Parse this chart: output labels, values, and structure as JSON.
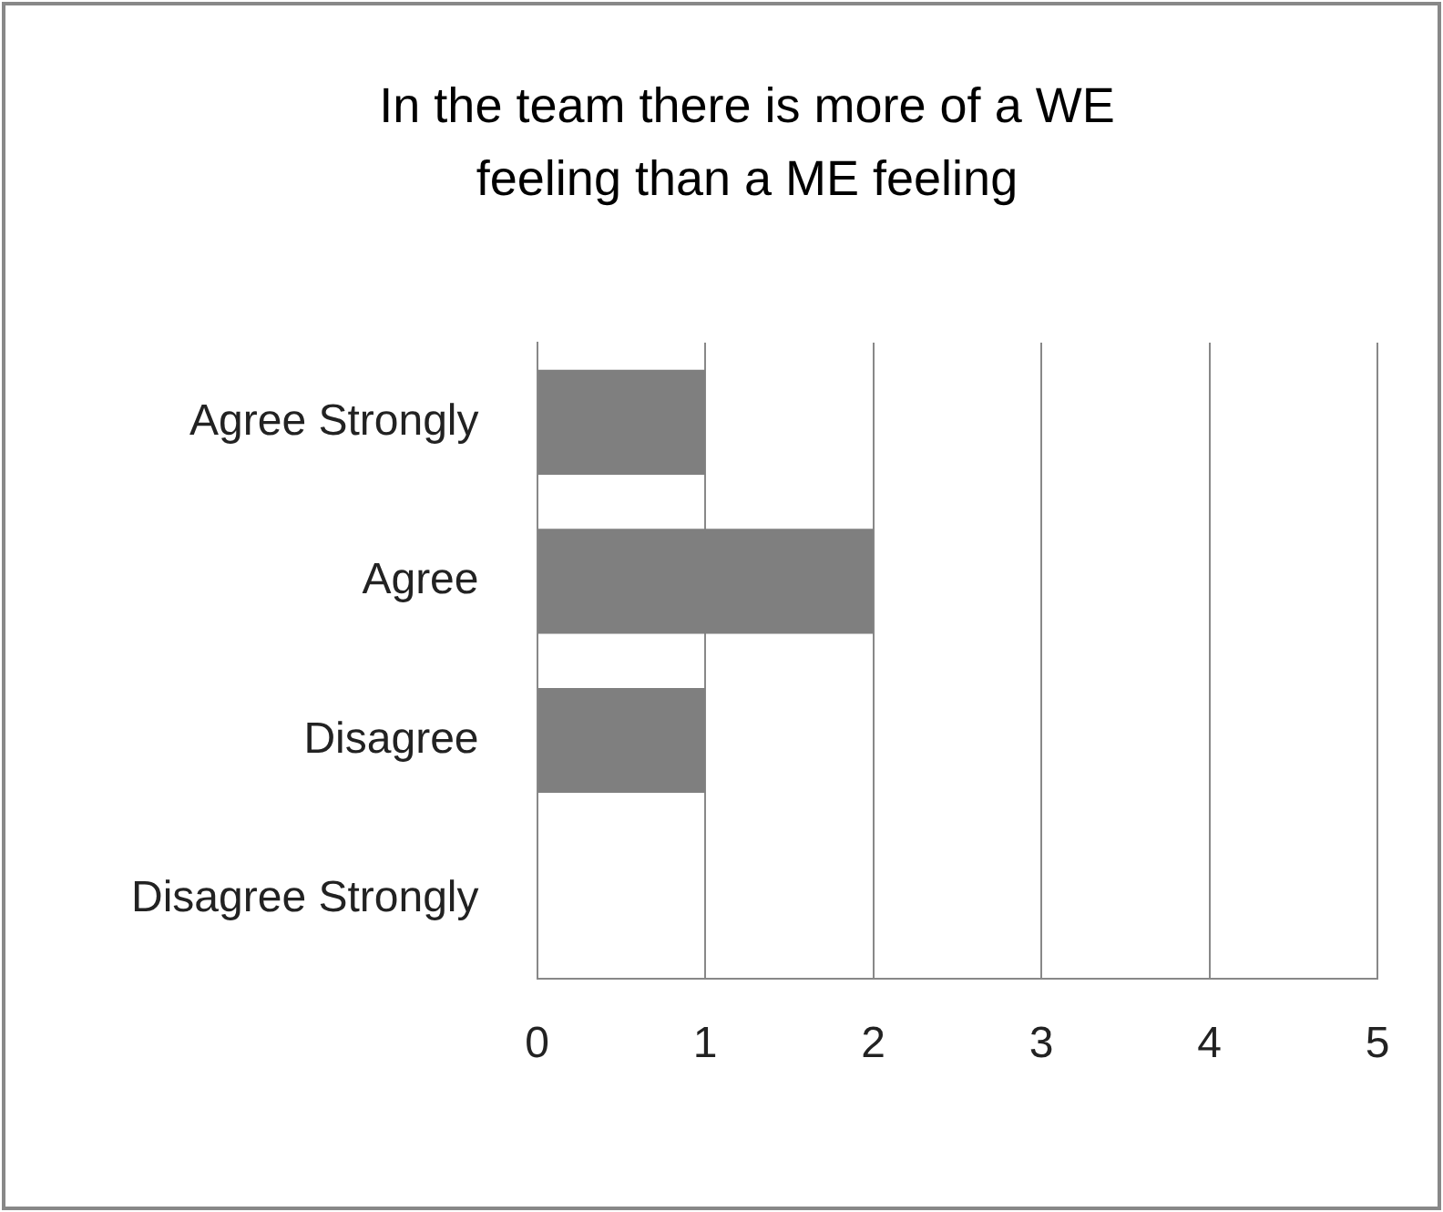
{
  "chart_data": {
    "type": "bar",
    "orientation": "horizontal",
    "title": "In the team there is more of a WE feeling than a ME feeling",
    "categories": [
      "Agree Strongly",
      "Agree",
      "Disagree",
      "Disagree Strongly"
    ],
    "values": [
      1,
      2,
      1,
      0
    ],
    "color": "#7f7f7f",
    "xlim": [
      0,
      5
    ],
    "xticks": [
      0,
      1,
      2,
      3,
      4,
      5
    ],
    "grid": "x",
    "legend": false
  }
}
